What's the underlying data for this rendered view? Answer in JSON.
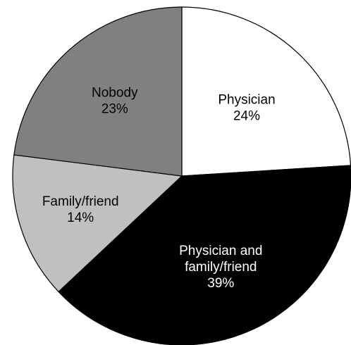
{
  "chart_data": {
    "type": "pie",
    "slices": [
      {
        "label_lines": [
          "Physician",
          "24%"
        ],
        "category": "Physician",
        "value": 24,
        "color": "#ffffff",
        "text_color": "#000000"
      },
      {
        "label_lines": [
          "Physician and",
          "family/friend",
          "39%"
        ],
        "category": "Physician and family/friend",
        "value": 39,
        "color": "#000000",
        "text_color": "#ffffff"
      },
      {
        "label_lines": [
          "Family/friend",
          "14%"
        ],
        "category": "Family/friend",
        "value": 14,
        "color": "#c0c0c0",
        "text_color": "#000000"
      },
      {
        "label_lines": [
          "Nobody",
          "23%"
        ],
        "category": "Nobody",
        "value": 23,
        "color": "#808080",
        "text_color": "#000000"
      }
    ],
    "start": "12 o'clock",
    "direction": "clockwise",
    "legend": "none"
  }
}
